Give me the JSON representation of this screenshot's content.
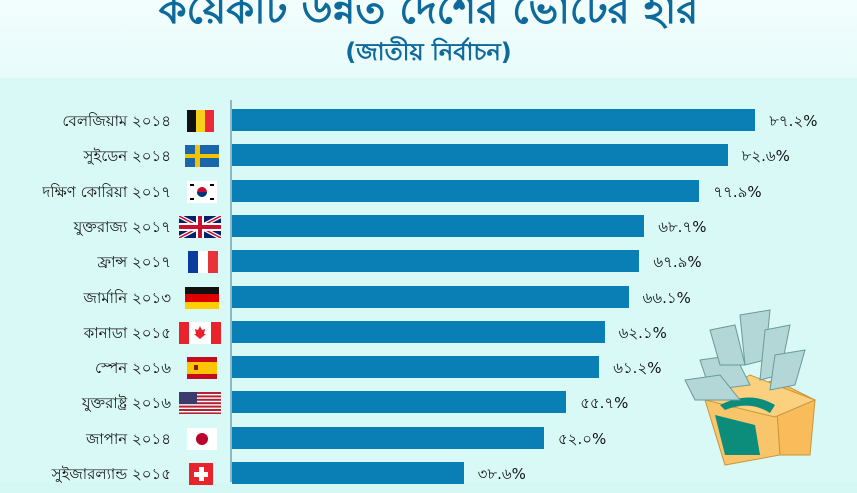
{
  "header": {
    "title": "কয়েকটি উন্নত দেশের ভোটের হার",
    "subtitle": "(জাতীয় নির্বাচন)"
  },
  "colors": {
    "bar": "#0a7fb5",
    "title": "#0d6a9a",
    "background": "#d8f9f6"
  },
  "chart_data": {
    "type": "bar",
    "orientation": "horizontal",
    "title": "কয়েকটি উন্নত দেশের ভোটের হার",
    "subtitle": "(জাতীয় নির্বাচন)",
    "xlabel": "",
    "ylabel": "",
    "unit": "%",
    "categories": [
      "বেলজিয়াম ২০১৪",
      "সুইডেন ২০১৪",
      "দক্ষিণ কোরিয়া ২০১৭",
      "যুক্তরাজ্য ২০১৭",
      "ফ্রান্স ২০১৭",
      "জার্মানি ২০১৩",
      "কানাডা ২০১৫",
      "স্পেন ২০১৬",
      "যুক্তরাষ্ট্র ২০১৬",
      "জাপান ২০১৪",
      "সুইজারল্যান্ড ২০১৫"
    ],
    "values": [
      87.2,
      82.6,
      77.9,
      68.7,
      67.9,
      66.1,
      62.1,
      61.2,
      55.7,
      52.0,
      38.6
    ],
    "value_labels": [
      "৮৭.২%",
      "৮২.৬%",
      "৭৭.৯%",
      "৬৮.৭%",
      "৬৭.৯%",
      "৬৬.১%",
      "৬২.১%",
      "৬১.২%",
      "৫৫.৭%",
      "৫২.০%",
      "৩৮.৬%"
    ],
    "flags": [
      "belgium",
      "sweden",
      "south-korea",
      "united-kingdom",
      "france",
      "germany",
      "canada",
      "spain",
      "united-states",
      "japan",
      "switzerland"
    ],
    "grid": false,
    "legend": "none"
  },
  "illustration": "ballot-box-icon"
}
